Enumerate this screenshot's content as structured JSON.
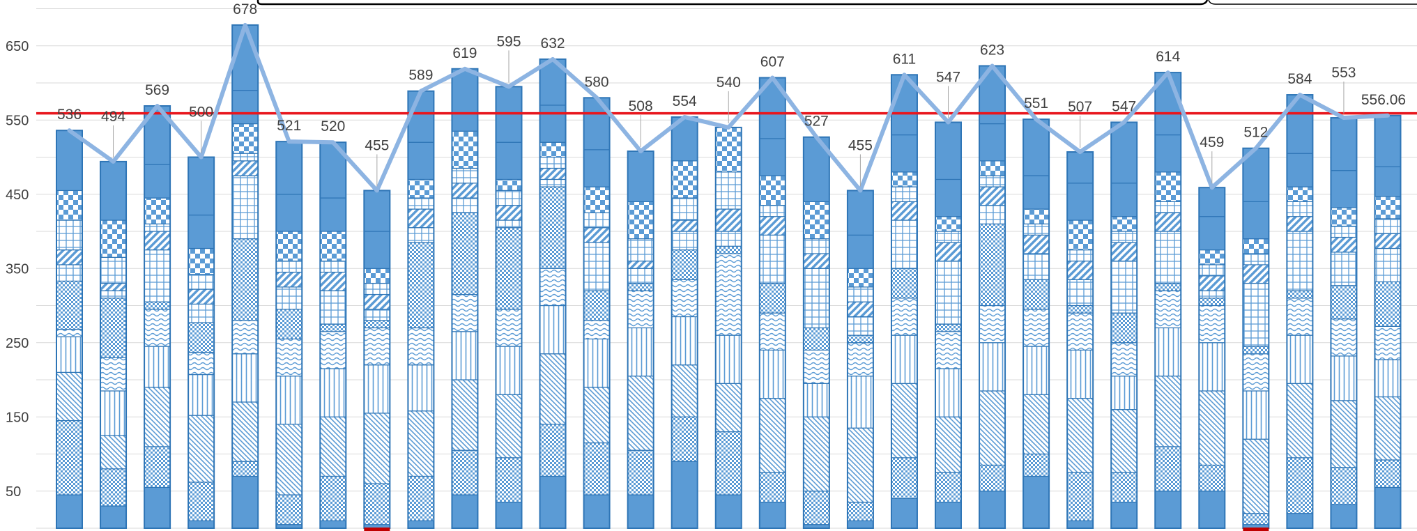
{
  "chart_data": {
    "type": "bar",
    "subtype": "stacked-bar-with-total-line",
    "title": "",
    "xlabel": "",
    "ylabel": "",
    "y_tick_labels": [
      "50",
      "150",
      "250",
      "350",
      "450",
      "550",
      "650"
    ],
    "y_ticks": [
      50,
      150,
      250,
      350,
      450,
      550,
      650
    ],
    "ylim": [
      0,
      700
    ],
    "grid": true,
    "reference_line": {
      "value": 559,
      "color": "#e8161d"
    },
    "colors": {
      "bar_fill": "#5b9bd5",
      "bar_stroke": "#2e75b6",
      "line": "#8db4e2",
      "grid": "#d9d9d9",
      "marker": "#c00000"
    },
    "totals": [
      536,
      494,
      569,
      500,
      678,
      521,
      520,
      455,
      589,
      619,
      595,
      632,
      580,
      508,
      554,
      540,
      607,
      527,
      455,
      611,
      547,
      623,
      551,
      507,
      547,
      614,
      459,
      512,
      584,
      553,
      556.06
    ],
    "total_labels": [
      "536",
      "494",
      "569",
      "500",
      "678",
      "521",
      "520",
      "455",
      "589",
      "619",
      "595",
      "632",
      "580",
      "508",
      "554",
      "540",
      "607",
      "527",
      "455",
      "611",
      "547",
      "623",
      "551",
      "507",
      "547",
      "614",
      "459",
      "512",
      "584",
      "553",
      "556.06"
    ],
    "highlighted_bars": [
      7,
      27
    ],
    "segment_boundaries": [
      [
        45,
        145,
        210,
        258,
        268,
        333,
        355,
        375,
        415,
        455
      ],
      [
        30,
        80,
        125,
        185,
        230,
        310,
        320,
        330,
        365,
        415
      ],
      [
        55,
        110,
        190,
        245,
        295,
        305,
        375,
        400,
        410,
        445,
        490
      ],
      [
        10,
        62,
        152,
        207,
        237,
        277,
        302,
        322,
        342,
        377,
        422
      ],
      [
        70,
        90,
        170,
        235,
        280,
        390,
        475,
        495,
        505,
        545,
        590
      ],
      [
        5,
        45,
        140,
        205,
        255,
        295,
        325,
        345,
        360,
        400,
        450
      ],
      [
        10,
        70,
        150,
        215,
        265,
        275,
        320,
        345,
        360,
        400,
        445
      ],
      [
        5,
        60,
        155,
        220,
        270,
        280,
        295,
        315,
        330,
        350,
        400
      ],
      [
        10,
        70,
        158,
        220,
        270,
        385,
        405,
        430,
        445,
        470,
        520
      ],
      [
        45,
        105,
        200,
        265,
        315,
        425,
        445,
        465,
        485,
        535
      ],
      [
        35,
        95,
        180,
        245,
        295,
        405,
        415,
        435,
        455,
        470,
        520
      ],
      [
        70,
        140,
        235,
        300,
        350,
        460,
        470,
        485,
        500,
        520,
        570
      ],
      [
        45,
        115,
        190,
        255,
        280,
        320,
        385,
        405,
        425,
        460,
        510
      ],
      [
        45,
        105,
        205,
        270,
        320,
        330,
        350,
        360,
        390,
        440
      ],
      [
        90,
        150,
        220,
        285,
        335,
        375,
        400,
        415,
        445,
        495
      ],
      [
        45,
        130,
        195,
        260,
        370,
        380,
        400,
        430,
        480
      ],
      [
        35,
        75,
        175,
        240,
        290,
        330,
        395,
        420,
        435,
        475,
        525
      ],
      [
        5,
        50,
        150,
        195,
        240,
        270,
        350,
        370,
        390,
        440
      ],
      [
        10,
        35,
        135,
        205,
        250,
        260,
        285,
        305,
        325,
        350,
        395
      ],
      [
        40,
        95,
        195,
        260,
        310,
        350,
        415,
        440,
        460,
        480,
        530
      ],
      [
        35,
        75,
        150,
        215,
        265,
        275,
        360,
        385,
        400,
        420,
        470
      ],
      [
        50,
        85,
        185,
        250,
        300,
        410,
        435,
        460,
        475,
        495,
        545
      ],
      [
        70,
        100,
        180,
        245,
        295,
        335,
        370,
        395,
        410,
        430,
        475
      ],
      [
        10,
        75,
        175,
        240,
        290,
        300,
        335,
        360,
        375,
        415,
        465
      ],
      [
        35,
        75,
        160,
        205,
        250,
        290,
        360,
        385,
        400,
        420,
        465
      ],
      [
        50,
        110,
        205,
        270,
        320,
        330,
        400,
        425,
        440,
        480,
        530
      ],
      [
        50,
        85,
        185,
        250,
        300,
        310,
        320,
        340,
        355,
        375,
        420
      ],
      [
        5,
        20,
        120,
        185,
        235,
        245,
        330,
        355,
        370,
        390,
        440
      ],
      [
        20,
        95,
        195,
        260,
        310,
        320,
        400,
        420,
        440,
        460,
        505
      ],
      [
        32,
        82,
        172,
        232,
        282,
        327,
        372,
        392,
        407,
        432,
        482
      ],
      [
        55,
        92,
        177,
        227,
        272,
        332,
        377,
        397,
        417,
        447,
        487
      ]
    ],
    "segment_patterns": [
      "solid",
      "dots",
      "diag-down",
      "vert",
      "wave",
      "dots",
      "grid",
      "diag-up",
      "grid",
      "check",
      "solid"
    ]
  }
}
